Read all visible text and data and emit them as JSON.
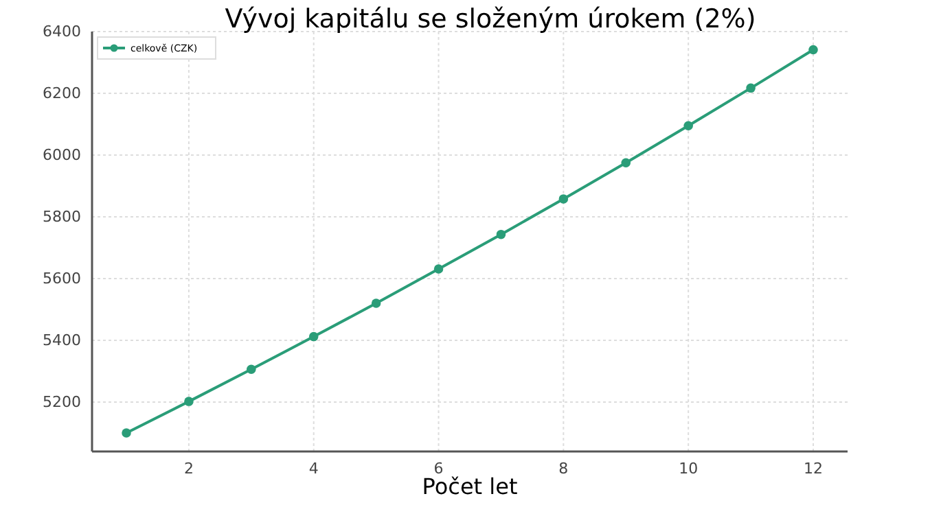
{
  "chart_data": {
    "type": "line",
    "title": "Vývoj kapitálu se složeným úrokem (2%)",
    "xlabel": "Počet let",
    "x": [
      1,
      2,
      3,
      4,
      5,
      6,
      7,
      8,
      9,
      10,
      11,
      12
    ],
    "series": [
      {
        "name": "celkově (CZK)",
        "color": "#2a9d78",
        "values": [
          5100,
          5202,
          5306,
          5412,
          5520,
          5631,
          5743,
          5858,
          5975,
          6095,
          6217,
          6341
        ]
      }
    ],
    "xlim": [
      0.45,
      12.55
    ],
    "xticks": [
      2,
      4,
      6,
      8,
      10,
      12
    ],
    "ylim": [
      5040,
      6400
    ],
    "yticks": [
      5200,
      5400,
      5600,
      5800,
      6000,
      6200,
      6400
    ],
    "grid": true,
    "legend": "top left",
    "marker": "circle",
    "line_style": "solid"
  }
}
